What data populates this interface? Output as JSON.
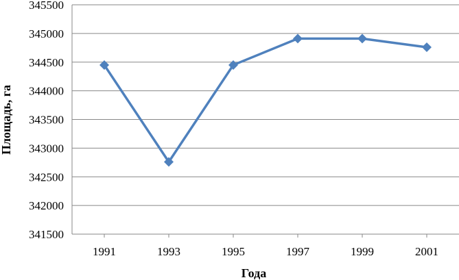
{
  "chart_data": {
    "type": "line",
    "title": "",
    "xlabel": "Года",
    "ylabel": "Площадь, га",
    "categories": [
      "1991",
      "1993",
      "1995",
      "1997",
      "1999",
      "2001"
    ],
    "series": [
      {
        "values": [
          344450,
          342760,
          344450,
          344910,
          344910,
          344760
        ],
        "color": "#4F81BD"
      }
    ],
    "ylim": [
      341500,
      345500
    ],
    "yticks": [
      "341500",
      "342000",
      "342500",
      "343000",
      "343500",
      "344000",
      "344500",
      "345000",
      "345500"
    ],
    "grid": true,
    "legend": "none",
    "colors": {
      "line": "#4F81BD",
      "grid": "#878787",
      "axis": "#878787"
    }
  }
}
